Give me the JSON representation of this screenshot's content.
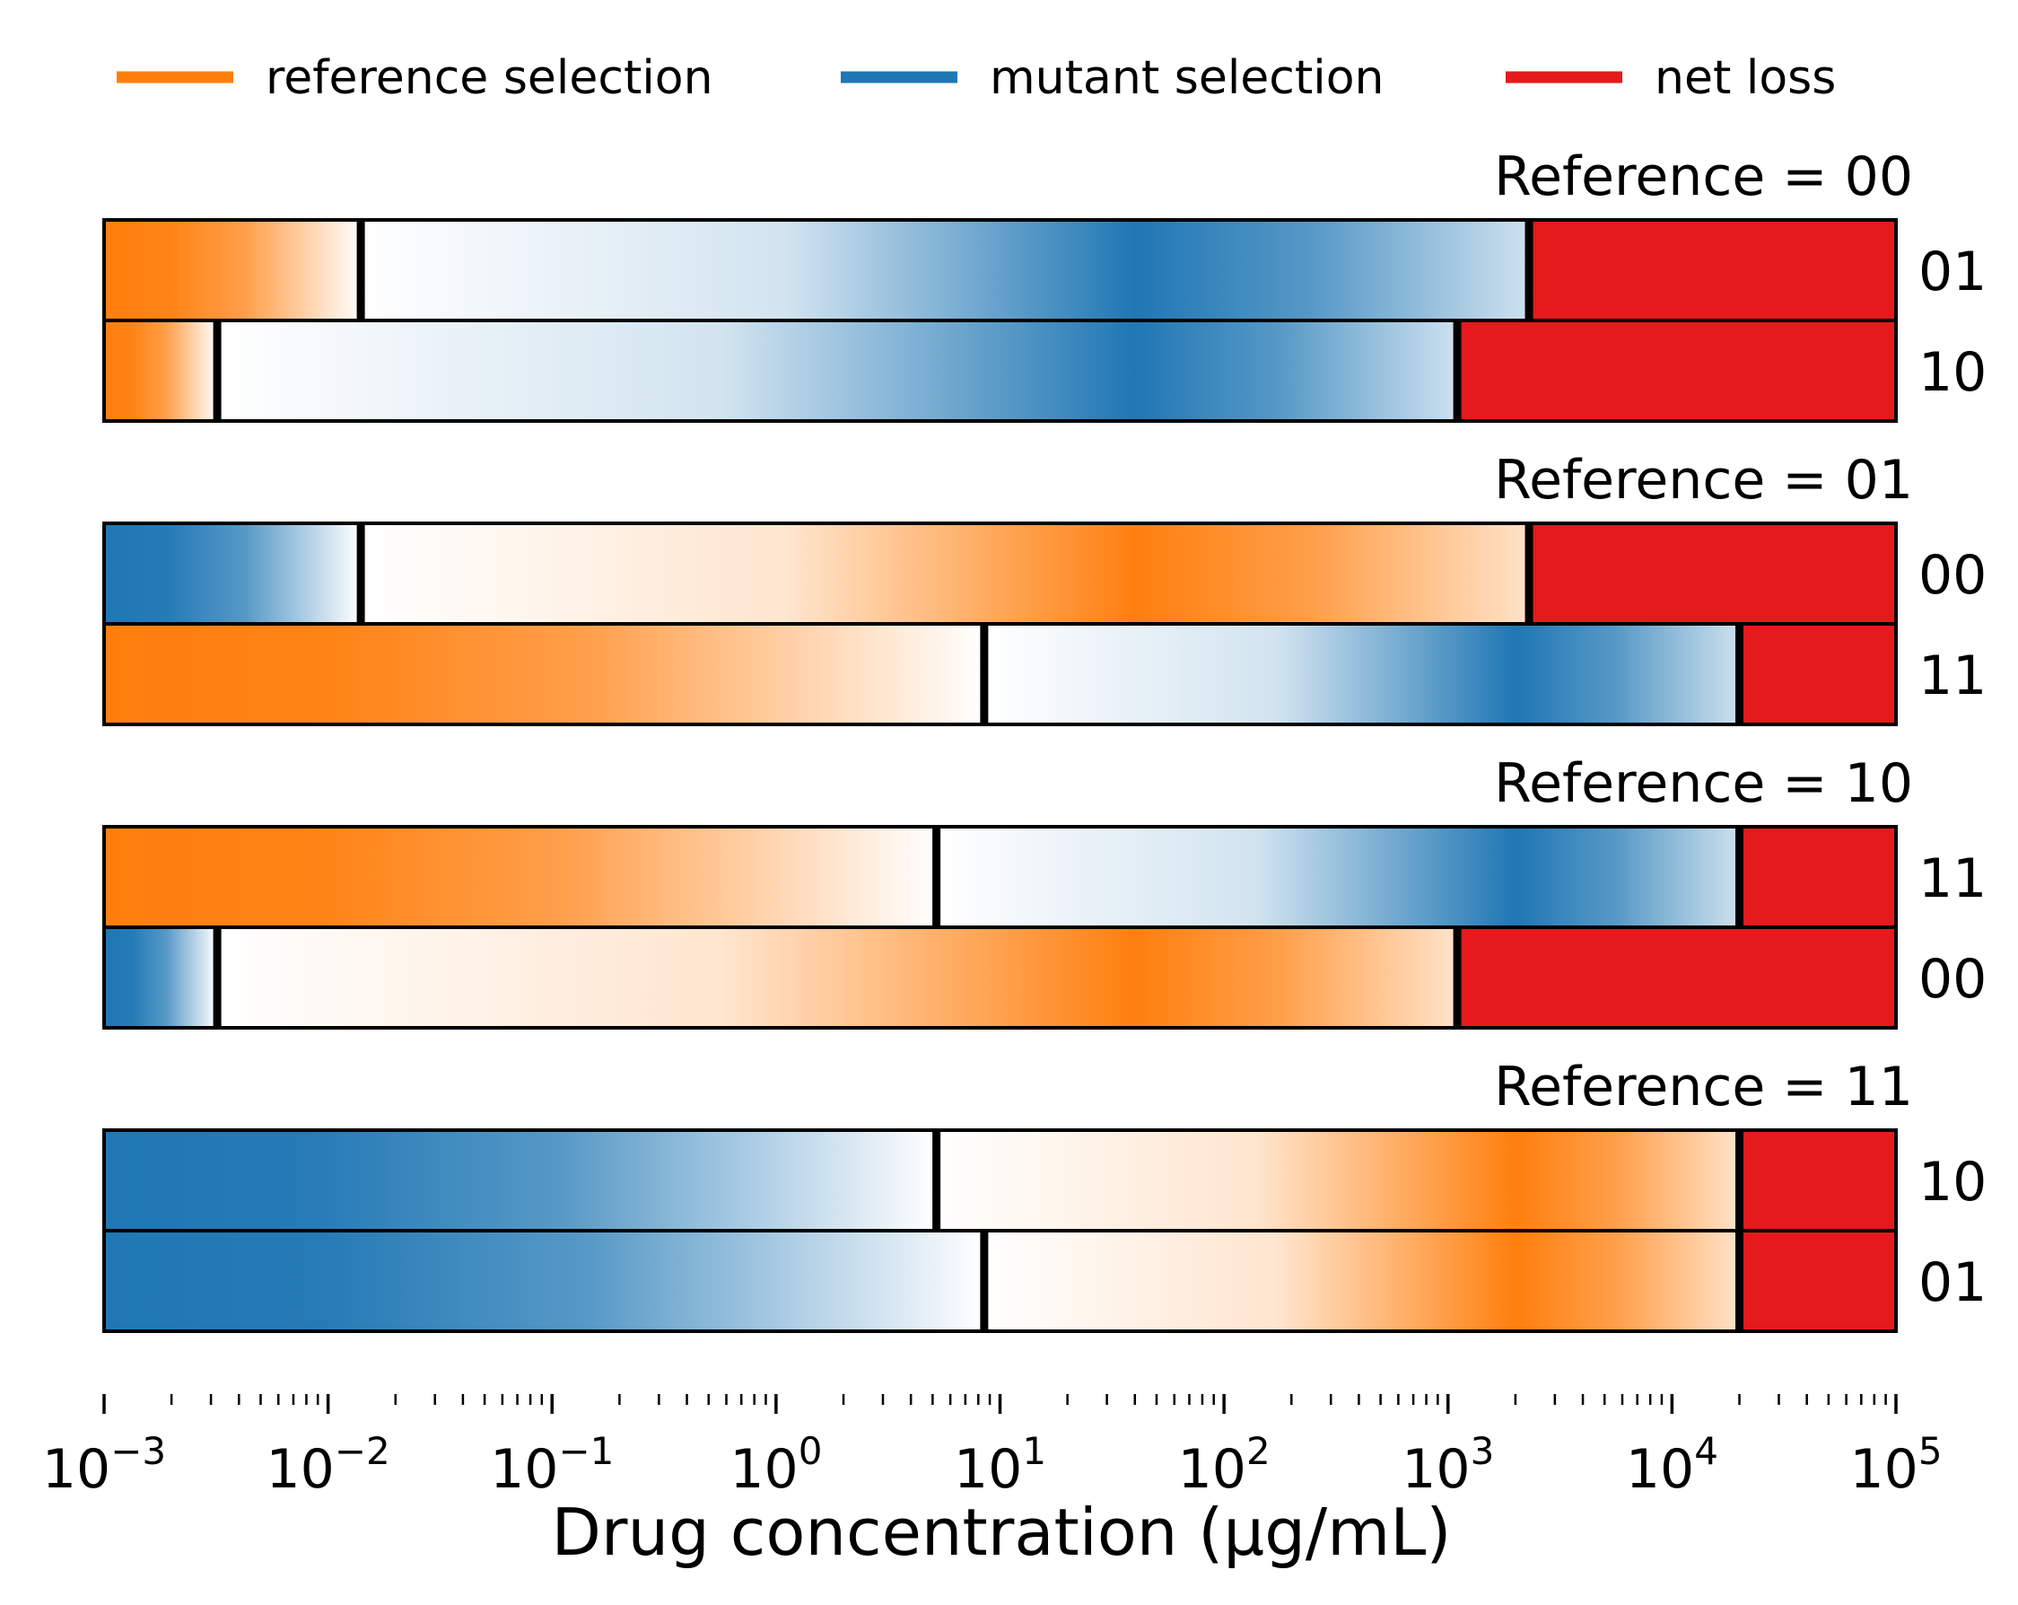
{
  "chart_data": {
    "type": "heatmap",
    "xlabel": "Drug concentration (µg/mL)",
    "x_scale": "log",
    "xlim": [
      0.001,
      100000
    ],
    "x_major_ticks": [
      0.001,
      0.01,
      0.1,
      1,
      10,
      100,
      1000,
      10000,
      100000
    ],
    "x_tick_labels": [
      {
        "base": "10",
        "exp": "−3"
      },
      {
        "base": "10",
        "exp": "−2"
      },
      {
        "base": "10",
        "exp": "−1"
      },
      {
        "base": "10",
        "exp": "0"
      },
      {
        "base": "10",
        "exp": "1"
      },
      {
        "base": "10",
        "exp": "2"
      },
      {
        "base": "10",
        "exp": "3"
      },
      {
        "base": "10",
        "exp": "4"
      },
      {
        "base": "10",
        "exp": "5"
      }
    ],
    "colors": {
      "reference": "#ff7f0e",
      "mutant": "#1f77b4",
      "net_loss": "#e41a1c"
    },
    "legend": [
      {
        "label": "reference selection",
        "color": "#ff7f0e"
      },
      {
        "label": "mutant selection",
        "color": "#1f77b4"
      },
      {
        "label": "net loss",
        "color": "#e41a1c"
      }
    ],
    "groups": [
      {
        "title": "Reference = 00",
        "rows": [
          {
            "label": "01",
            "segments": [
              {
                "kind": "reference",
                "x0": 0.001,
                "x1": 0.014,
                "peak": 0.001
              },
              {
                "kind": "mutant",
                "x0": 0.014,
                "x1": 2300,
                "peak": 40
              },
              {
                "kind": "net_loss",
                "x0": 2300,
                "x1": 100000
              }
            ]
          },
          {
            "label": "10",
            "segments": [
              {
                "kind": "reference",
                "x0": 0.001,
                "x1": 0.0032,
                "peak": 0.001
              },
              {
                "kind": "mutant",
                "x0": 0.0032,
                "x1": 1100,
                "peak": 40
              },
              {
                "kind": "net_loss",
                "x0": 1100,
                "x1": 100000
              }
            ]
          }
        ]
      },
      {
        "title": "Reference = 01",
        "rows": [
          {
            "label": "00",
            "segments": [
              {
                "kind": "mutant",
                "x0": 0.001,
                "x1": 0.014,
                "peak": 0.001
              },
              {
                "kind": "reference",
                "x0": 0.014,
                "x1": 2300,
                "peak": 40
              },
              {
                "kind": "net_loss",
                "x0": 2300,
                "x1": 100000
              }
            ]
          },
          {
            "label": "11",
            "segments": [
              {
                "kind": "reference",
                "x0": 0.001,
                "x1": 8.5,
                "peak": 0.001
              },
              {
                "kind": "mutant",
                "x0": 8.5,
                "x1": 20000,
                "peak": 2000
              },
              {
                "kind": "net_loss",
                "x0": 20000,
                "x1": 100000
              }
            ]
          }
        ]
      },
      {
        "title": "Reference = 10",
        "rows": [
          {
            "label": "11",
            "segments": [
              {
                "kind": "reference",
                "x0": 0.001,
                "x1": 5.2,
                "peak": 0.001
              },
              {
                "kind": "mutant",
                "x0": 5.2,
                "x1": 20000,
                "peak": 2000
              },
              {
                "kind": "net_loss",
                "x0": 20000,
                "x1": 100000
              }
            ]
          },
          {
            "label": "00",
            "segments": [
              {
                "kind": "mutant",
                "x0": 0.001,
                "x1": 0.0032,
                "peak": 0.001
              },
              {
                "kind": "reference",
                "x0": 0.0032,
                "x1": 1100,
                "peak": 40
              },
              {
                "kind": "net_loss",
                "x0": 1100,
                "x1": 100000
              }
            ]
          }
        ]
      },
      {
        "title": "Reference = 11",
        "rows": [
          {
            "label": "10",
            "segments": [
              {
                "kind": "mutant",
                "x0": 0.001,
                "x1": 5.2,
                "peak": 0.001
              },
              {
                "kind": "reference",
                "x0": 5.2,
                "x1": 20000,
                "peak": 2000
              },
              {
                "kind": "net_loss",
                "x0": 20000,
                "x1": 100000
              }
            ]
          },
          {
            "label": "01",
            "segments": [
              {
                "kind": "mutant",
                "x0": 0.001,
                "x1": 8.5,
                "peak": 0.001
              },
              {
                "kind": "reference",
                "x0": 8.5,
                "x1": 20000,
                "peak": 2000
              },
              {
                "kind": "net_loss",
                "x0": 20000,
                "x1": 100000
              }
            ]
          }
        ]
      }
    ]
  }
}
